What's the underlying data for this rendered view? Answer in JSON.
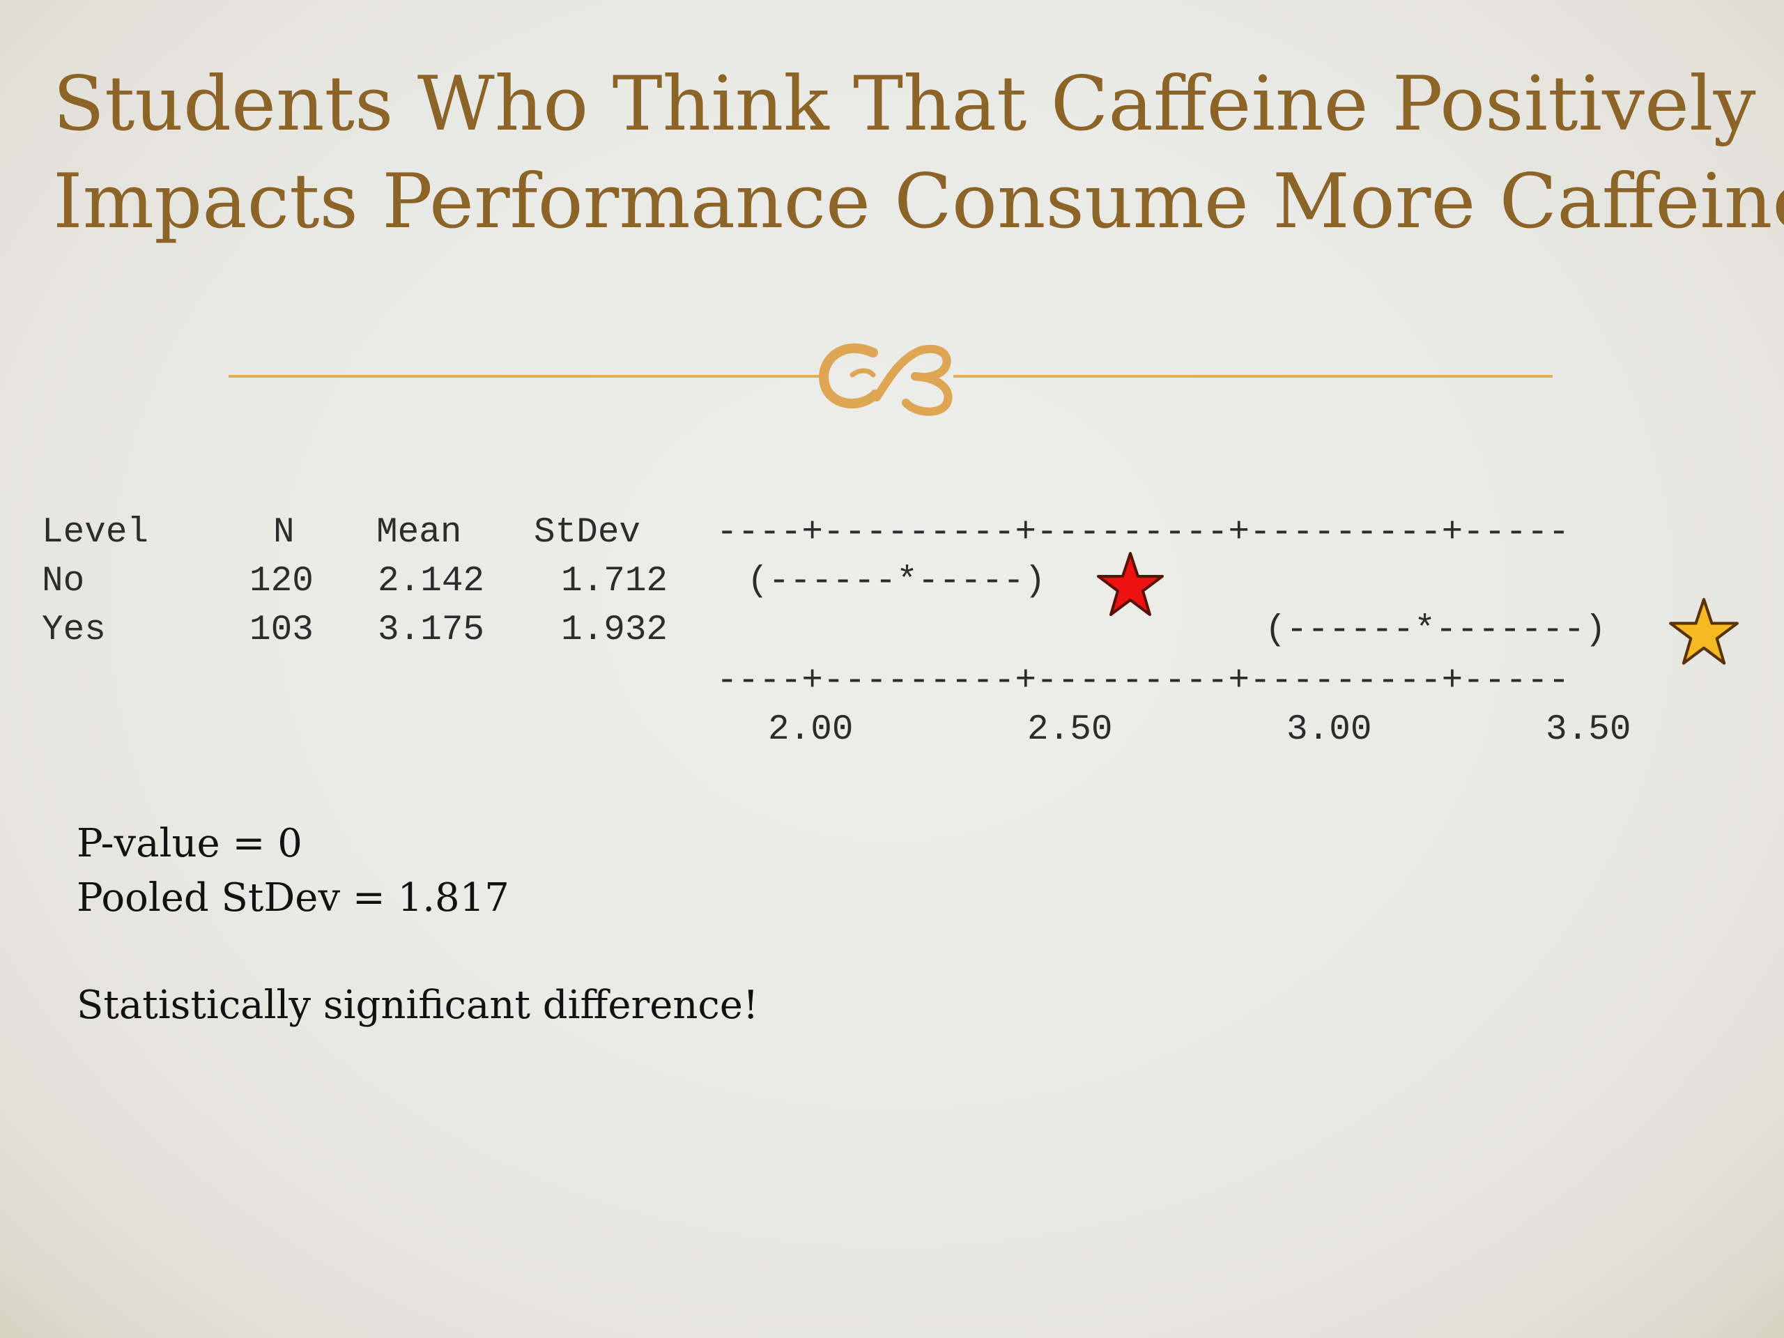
{
  "slide": {
    "title_line1": "Students Who Think That Caffeine Positively",
    "title_line2": "Impacts Performance Consume More Caffeine",
    "accent_color": "#8d6427",
    "divider_color": "#e0ae55",
    "divider_icon": "ornamental-flourish"
  },
  "anova": {
    "headers": {
      "level": "Level",
      "n": "N",
      "mean": "Mean",
      "stdev": "StDev"
    },
    "rows": [
      {
        "level": "No",
        "n": "120",
        "mean": "2.142",
        "stdev": "1.712",
        "interval": "(------*-----)"
      },
      {
        "level": "Yes",
        "n": "103",
        "mean": "3.175",
        "stdev": "1.932",
        "interval": "(------*-------)"
      }
    ],
    "scale_top": "----+---------+---------+---------+-----",
    "scale_bottom": "----+---------+---------+---------+-----",
    "ticks": [
      "2.00",
      "2.50",
      "3.00",
      "3.50"
    ]
  },
  "markers": [
    {
      "name": "red-star",
      "color": "#ee1111"
    },
    {
      "name": "gold-star",
      "color": "#f5b922"
    }
  ],
  "stats": {
    "pvalue": "P-value = 0",
    "pooled": "Pooled StDev = 1.817",
    "conclusion": "Statistically significant difference!"
  }
}
